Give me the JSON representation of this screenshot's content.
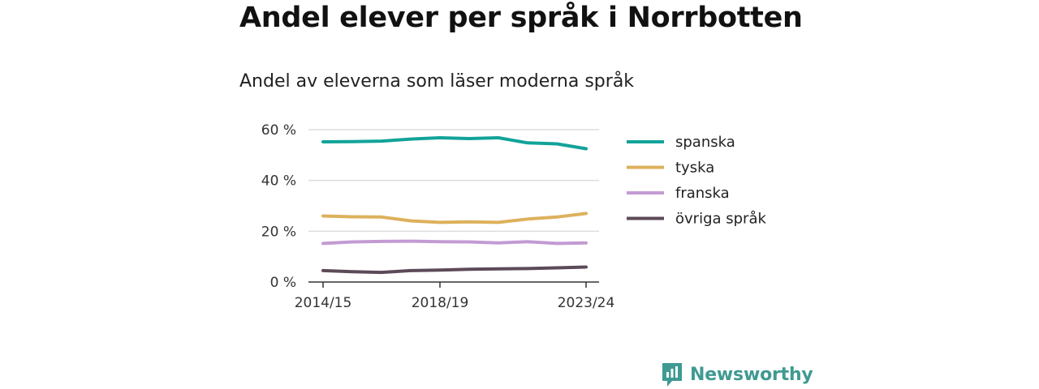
{
  "title": "Andel elever per språk i Norrbotten",
  "subtitle": "Andel av eleverna som läser moderna språk",
  "brand": "Newsworthy",
  "chart_data": {
    "type": "line",
    "x": [
      "2014/15",
      "2015/16",
      "2016/17",
      "2017/18",
      "2018/19",
      "2019/20",
      "2020/21",
      "2021/22",
      "2022/23",
      "2023/24"
    ],
    "x_tick_labels": [
      "2014/15",
      "2018/19",
      "2023/24"
    ],
    "y_tick_labels": [
      "0 %",
      "20 %",
      "40 %",
      "60 %"
    ],
    "ylim": [
      0,
      60
    ],
    "grid": true,
    "legend_position": "right",
    "series": [
      {
        "name": "spanska",
        "color": "#12a399",
        "values": [
          55.2,
          55.3,
          55.5,
          56.3,
          56.8,
          56.5,
          56.8,
          54.8,
          54.4,
          52.5
        ]
      },
      {
        "name": "tyska",
        "color": "#ddb15c",
        "values": [
          26.0,
          25.7,
          25.6,
          24.1,
          23.5,
          23.7,
          23.5,
          24.8,
          25.6,
          27.0
        ]
      },
      {
        "name": "franska",
        "color": "#c39bd3",
        "values": [
          15.2,
          15.8,
          16.0,
          16.1,
          15.9,
          15.8,
          15.4,
          15.9,
          15.2,
          15.4
        ]
      },
      {
        "name": "övriga språk",
        "color": "#5d4a58",
        "values": [
          4.5,
          4.1,
          3.8,
          4.5,
          4.7,
          5.0,
          5.2,
          5.3,
          5.6,
          5.9
        ]
      }
    ]
  }
}
